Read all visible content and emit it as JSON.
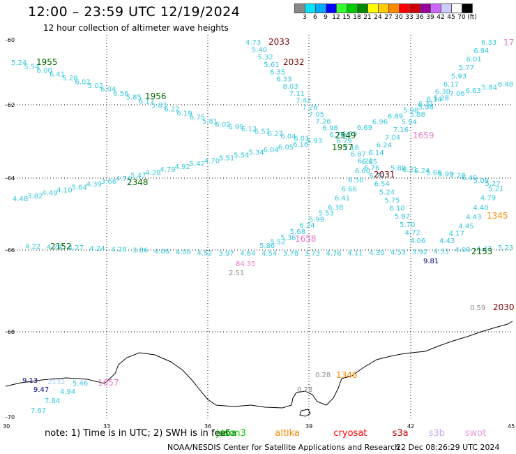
{
  "header": {
    "title": "12:00  –  23:59 UTC 12/19/2024",
    "subtitle": "12 hour collection of altimeter wave heights"
  },
  "legend": {
    "colors": [
      "#888888",
      "#00e5ff",
      "#00aaff",
      "#0000ff",
      "#33ff33",
      "#00cc00",
      "#008800",
      "#ffff00",
      "#ffcc00",
      "#ff8800",
      "#ff0000",
      "#cc0000",
      "#990099",
      "#cc66ff",
      "#ccccff",
      "#ffffff",
      "#000000"
    ],
    "labels": [
      "3",
      "6",
      "9",
      "12",
      "15",
      "18",
      "21",
      "24",
      "27",
      "30",
      "33",
      "36",
      "39",
      "42",
      "45",
      "70",
      "(ft)"
    ]
  },
  "axes": {
    "lat_labels": [
      "-60",
      "-62",
      "-64",
      "-66",
      "-68",
      "-70"
    ],
    "lon_labels": [
      "30",
      "33",
      "36",
      "39",
      "42",
      "45"
    ]
  },
  "satellites": {
    "jason3": {
      "label": "jason3",
      "color": "#00cc00"
    },
    "sentinel6": {
      "label": "s6a",
      "color": "#008000"
    },
    "altika": {
      "label": "altika",
      "color": "#ff8800"
    },
    "cryosat": {
      "label": "cryosat",
      "color": "#ff0000"
    },
    "s3a": {
      "label": "s3a",
      "color": "#cc0000"
    },
    "s3b": {
      "label": "s3b",
      "color": "#ccaaee"
    },
    "swot": {
      "label": "swot",
      "color": "#ee99dd"
    }
  },
  "time_labels": [
    {
      "text": "1955",
      "color": "#006600"
    },
    {
      "text": "1956",
      "color": "#006600"
    },
    {
      "text": "1957",
      "color": "#006600"
    },
    {
      "text": "2348",
      "color": "#006600"
    },
    {
      "text": "2349",
      "color": "#006600"
    },
    {
      "text": "2152",
      "color": "#006600"
    },
    {
      "text": "2153",
      "color": "#006600"
    },
    {
      "text": "2033",
      "color": "#800000"
    },
    {
      "text": "2032",
      "color": "#800000"
    },
    {
      "text": "2031",
      "color": "#800000"
    },
    {
      "text": "2030",
      "color": "#800000"
    },
    {
      "text": "1659",
      "color": "#ee77cc"
    },
    {
      "text": "1658",
      "color": "#ee77cc"
    },
    {
      "text": "1657",
      "color": "#ee77cc"
    },
    {
      "text": "1345",
      "color": "#ff8800"
    },
    {
      "text": "1346",
      "color": "#ff8800"
    },
    {
      "text": "17",
      "color": "#ee77cc"
    }
  ],
  "track_values": {
    "track_1955": [
      "5.24",
      "5.54",
      "6.00",
      "6.41",
      "5.28",
      "6.02",
      "5.02",
      "6.04",
      "6.56",
      "5.85",
      "6.17",
      "5.83",
      "6.22",
      "6.19",
      "6.75",
      "5.81",
      "6.02",
      "6.99",
      "6.12",
      "6.57",
      "6.27",
      "6.04",
      "6.01",
      "5.93"
    ],
    "track_2033": [
      "4.73",
      "5.40",
      "5.32",
      "5.61",
      "6.35",
      "6.33",
      "8.03",
      "7.11",
      "7.42",
      "7.26",
      "7.05",
      "7.26",
      "6.98",
      "6.70",
      "6.79",
      "7.18",
      "6.87",
      "6.21",
      "6.76",
      "6.73",
      "6.54",
      "5.24",
      "5.75",
      "6.10",
      "5.87",
      "5.70",
      "4.72",
      "4.06"
    ],
    "track_2348": [
      "4.48",
      "3.82",
      "4.49",
      "4.10",
      "5.64",
      "4.39",
      "3.66",
      "4.74",
      "5.47",
      "4.28",
      "4.79",
      "4.92",
      "5.42",
      "4.70",
      "5.51",
      "5.54",
      "5.34",
      "6.04",
      "6.05",
      "6.16"
    ],
    "track_2349_up": [
      "6.33",
      "6.94",
      "6.01",
      "5.77",
      "5.93",
      "6.17",
      "6.30",
      "6.14",
      "5.98",
      "5.88",
      "5.94",
      "7.16",
      "7.04",
      "6.24",
      "6.14",
      "6.65",
      "6.60",
      "6.58",
      "6.66",
      "6.41",
      "6.38",
      "5.53",
      "5.99",
      "6.24",
      "5.68",
      "5.36",
      "5.52",
      "5.86"
    ],
    "track_2349_right": [
      "6.48",
      "5.84",
      "6.63",
      "7.06",
      "5.28",
      "6.31",
      "5.98",
      "6.89",
      "6.96",
      "6.69",
      "6.89"
    ],
    "track_2031": [
      "5.88",
      "6.21",
      "6.24",
      "5.66",
      "5.99",
      "7.28",
      "6.40",
      "5.09",
      "5.27",
      "5.21",
      "4.79",
      "4.40",
      "4.43",
      "4.45",
      "4.17",
      "4.43"
    ],
    "track_2152": [
      "4.22",
      "4.24",
      "4.27",
      "4.24",
      "4.28",
      "3.86",
      "4.06",
      "4.08",
      "4.52",
      "3.97",
      "4.64",
      "4.54",
      "3.78",
      "3.73",
      "4.76",
      "4.11",
      "4.30",
      "4.53",
      "3.92",
      "4.33",
      "4.09",
      "4.47",
      "5.23"
    ],
    "low_values": [
      "84.35",
      "2.51",
      "9.81",
      "0.59",
      "0.28",
      "0.28"
    ],
    "coast_values": [
      "9.13",
      "9.47",
      "7.84",
      "7.67",
      "5.46",
      "4.94",
      "2132"
    ]
  },
  "footer": {
    "note": "note:  1) Time is in UTC; 2) SWH is in feet",
    "credit": "NOAA/NESDIS Center for Satellite Applications and Research",
    "timestamp": "22 Dec 08:26:29 UTC 2024"
  }
}
